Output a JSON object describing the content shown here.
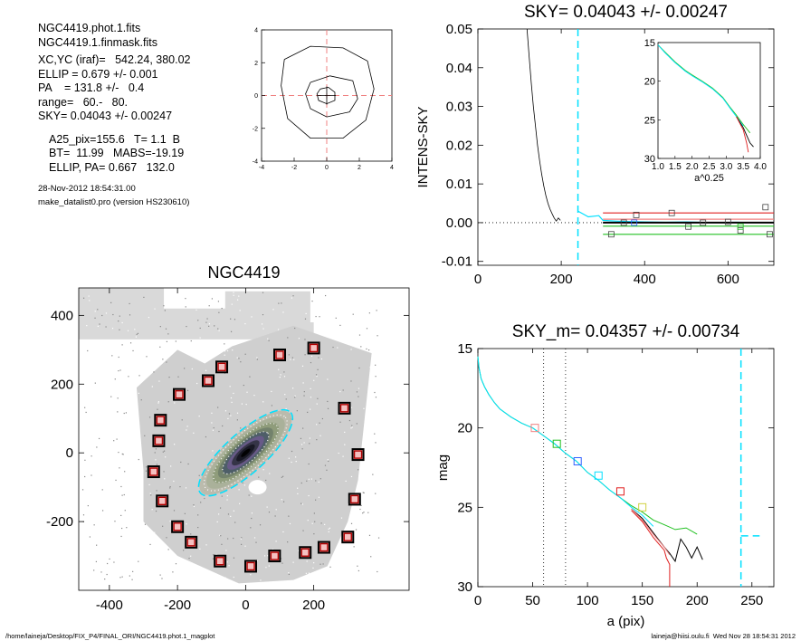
{
  "info": {
    "block1": [
      "NGC4419.phot.1.fits",
      "NGC4419.1.finmask.fits"
    ],
    "block2": [
      "XC,YC (iraf)=   542.24, 380.02",
      "ELLIP = 0.679 +/- 0.001",
      "PA    = 131.8 +/-   0.4",
      "range=   60.-   80.",
      "SKY= 0.04043 +/- 0.00247"
    ],
    "block3": [
      "A25_pix=155.6   T= 1.1  B",
      "BT=  11.99   MABS=-19.19",
      "ELLIP, PA= 0.667   132.0"
    ],
    "block4": [
      "28-Nov-2012 18:54:31.00",
      "make_datalist0.pro (version HS230610)"
    ]
  },
  "footer": {
    "left": "/home/laineja/Desktop/FIX_P4/FINAL_ORI/NGC4419.phot.1_magplot",
    "right": "laineja@hiisi.oulu.fi  Wed Nov 28 18:54:31 2012"
  },
  "colors": {
    "cyan": "#00e0ff",
    "red": "#e02020",
    "green": "#22c022",
    "salmon": "#f08080",
    "blue": "#3060ff",
    "box": "#b00000"
  },
  "chart_data": [
    {
      "id": "isophote_panel",
      "type": "line",
      "title": "",
      "xlim": [
        -4,
        4
      ],
      "ylim": [
        -4,
        4
      ],
      "xticks": [
        "-4",
        "-2",
        "0",
        "2",
        "4"
      ],
      "yticks": [
        "-4",
        "-2",
        "0",
        "2",
        "4"
      ],
      "contours": [
        [
          [
            -2.6,
            2.2
          ],
          [
            -1.0,
            3.0
          ],
          [
            1.0,
            2.9
          ],
          [
            2.5,
            2.1
          ],
          [
            2.9,
            0.4
          ],
          [
            2.4,
            -1.5
          ],
          [
            1.0,
            -2.6
          ],
          [
            -1.0,
            -2.6
          ],
          [
            -2.4,
            -1.4
          ],
          [
            -2.8,
            0.6
          ],
          [
            -2.6,
            2.2
          ]
        ],
        [
          [
            -1.0,
            0.8
          ],
          [
            0.2,
            1.2
          ],
          [
            1.6,
            0.9
          ],
          [
            1.9,
            -0.2
          ],
          [
            1.4,
            -1.0
          ],
          [
            0.0,
            -1.3
          ],
          [
            -1.0,
            -0.8
          ],
          [
            -1.3,
            0.1
          ],
          [
            -1.0,
            0.8
          ]
        ],
        [
          [
            -0.4,
            0.4
          ],
          [
            0.1,
            0.5
          ],
          [
            0.5,
            0.2
          ],
          [
            0.5,
            -0.3
          ],
          [
            0.0,
            -0.5
          ],
          [
            -0.5,
            -0.3
          ],
          [
            -0.6,
            0.1
          ],
          [
            -0.4,
            0.4
          ]
        ]
      ],
      "crosshair": [
        0,
        0
      ]
    },
    {
      "id": "sky_panel",
      "type": "line",
      "title": "SKY= 0.04043 +/- 0.00247",
      "xlabel": "",
      "ylabel": "INTENS-SKY",
      "xlim": [
        0,
        710
      ],
      "ylim": [
        -0.011,
        0.05
      ],
      "xticks": [
        0,
        200,
        400,
        600
      ],
      "yticks": [
        "0.05",
        "0.04",
        "0.03",
        "0.02",
        "0.01",
        "0.00",
        "-0.01"
      ],
      "ytick_values": [
        0.05,
        0.04,
        0.03,
        0.02,
        0.01,
        0.0,
        -0.01
      ],
      "series": [
        {
          "color": "#000000",
          "x": [
            118,
            123,
            128,
            133,
            138,
            143,
            148,
            153,
            158,
            163,
            168,
            173,
            178,
            183,
            188,
            193,
            198
          ],
          "y": [
            0.05,
            0.043,
            0.036,
            0.03,
            0.025,
            0.02,
            0.016,
            0.0125,
            0.0095,
            0.007,
            0.005,
            0.0035,
            0.0023,
            0.0012,
            0.0004,
            0.0012,
            0.0006
          ]
        },
        {
          "color": "#00e0ff",
          "x": [
            240,
            265,
            290,
            300,
            330,
            360,
            400,
            450,
            500,
            560,
            620,
            680,
            710
          ],
          "y": [
            0.003,
            0.0015,
            0.0018,
            0.0006,
            0.0004,
            0.0003,
            0.0002,
            0.0001,
            0.0002,
            0.0,
            0.0001,
            0.0,
            0.0
          ]
        },
        {
          "color": "#e02020",
          "x": [
            300,
            710
          ],
          "y": [
            0.0025,
            0.0025
          ]
        },
        {
          "color": "#f08080",
          "x": [
            300,
            710
          ],
          "y": [
            0.0009,
            0.0009
          ]
        },
        {
          "color": "#22c022",
          "x": [
            300,
            710
          ],
          "y": [
            -0.0009,
            -0.0009
          ]
        },
        {
          "color": "#22c022",
          "x": [
            300,
            710
          ],
          "y": [
            -0.003,
            -0.003
          ]
        }
      ],
      "sky_level": 0.0,
      "sky_box_points": {
        "x": [
          320,
          350,
          380,
          465,
          505,
          540,
          600,
          630,
          690,
          700,
          375,
          630
        ],
        "y": [
          -0.003,
          0.0,
          0.002,
          0.0025,
          -0.001,
          0.0,
          0.0002,
          -0.002,
          0.004,
          -0.003,
          0.0,
          -0.001
        ]
      },
      "vline": 240,
      "inset": {
        "xlabel": "a^0.25",
        "xlim": [
          1.0,
          4.0
        ],
        "ylim": [
          15,
          30
        ],
        "xticks": [
          "1.0",
          "1.5",
          "2.0",
          "2.5",
          "3.0",
          "3.5",
          "4.0"
        ],
        "yticks": [
          "15",
          "20",
          "25",
          "30"
        ],
        "series": [
          {
            "color": "#22c022",
            "x": [
              1.0,
              1.2,
              1.5,
              1.8,
              2.0,
              2.3,
              2.6,
              2.9,
              3.1,
              3.3,
              3.5,
              3.7
            ],
            "y": [
              15.3,
              16.2,
              17.5,
              18.6,
              19.2,
              20.0,
              20.9,
              22.1,
              23.3,
              24.4,
              25.6,
              26.7
            ]
          },
          {
            "color": "#00e0ff",
            "x": [
              1.0,
              1.2,
              1.5,
              1.8,
              2.0,
              2.3,
              2.6,
              2.9,
              3.1,
              3.3,
              3.5
            ],
            "y": [
              15.3,
              16.3,
              17.6,
              18.7,
              19.3,
              20.1,
              21.0,
              22.2,
              23.4,
              24.6,
              25.8
            ]
          },
          {
            "color": "#000000",
            "x": [
              3.3,
              3.5,
              3.6,
              3.7,
              3.8
            ],
            "y": [
              24.6,
              26.0,
              27.0,
              28.0,
              28.5
            ]
          },
          {
            "color": "#e02020",
            "x": [
              3.3,
              3.5,
              3.6,
              3.65
            ],
            "y": [
              24.6,
              26.3,
              28.0,
              29.2
            ]
          }
        ]
      }
    },
    {
      "id": "galaxy_image",
      "type": "scatter",
      "title": "NGC4419",
      "xlim": [
        -490,
        480
      ],
      "ylim": [
        -400,
        480
      ],
      "xticks": [
        -400,
        -200,
        0,
        200
      ],
      "yticks": [
        400,
        200,
        0,
        -200
      ],
      "ellipse": {
        "cx": 0,
        "cy": 0,
        "a": 174,
        "b": 58,
        "angle_deg": 41.8
      },
      "sky_boxes": {
        "x": [
          -270,
          -250,
          -255,
          -195,
          -110,
          -70,
          100,
          200,
          290,
          330,
          320,
          300,
          230,
          175,
          85,
          15,
          -75,
          -160,
          -200,
          -245
        ],
        "y": [
          -55,
          95,
          35,
          170,
          210,
          250,
          285,
          305,
          130,
          -5,
          -135,
          -245,
          -275,
          -290,
          -300,
          -330,
          -315,
          -260,
          -215,
          -140
        ]
      }
    },
    {
      "id": "mag_panel",
      "type": "line",
      "title": "SKY_m=  0.04357 +/- 0.00734",
      "xlabel": "a (pix)",
      "ylabel": "mag",
      "xlim": [
        0,
        270
      ],
      "ylim": [
        30,
        15
      ],
      "xticks": [
        0,
        50,
        100,
        150,
        200,
        250
      ],
      "yticks": [
        15,
        20,
        25,
        30
      ],
      "series": [
        {
          "color": "#22c022",
          "x": [
            0,
            1,
            3,
            6,
            10,
            15,
            20,
            30,
            40,
            50,
            60,
            70,
            80,
            90,
            100,
            110,
            120,
            130,
            140,
            150,
            160,
            170,
            180,
            190,
            200
          ],
          "y": [
            15.5,
            16.2,
            16.9,
            17.4,
            17.9,
            18.4,
            18.8,
            19.3,
            19.7,
            20.0,
            20.5,
            21.0,
            21.6,
            22.1,
            22.8,
            23.3,
            23.9,
            24.4,
            24.9,
            25.3,
            25.8,
            26.1,
            26.4,
            26.3,
            26.7
          ]
        },
        {
          "color": "#00e0ff",
          "x": [
            0,
            1,
            3,
            6,
            10,
            15,
            20,
            30,
            40,
            50,
            60,
            70,
            80,
            90,
            100,
            110,
            120,
            130,
            140,
            150,
            160
          ],
          "y": [
            15.5,
            16.2,
            16.9,
            17.4,
            17.9,
            18.4,
            18.8,
            19.3,
            19.7,
            20.0,
            20.5,
            21.0,
            21.6,
            22.1,
            22.8,
            23.3,
            23.9,
            24.4,
            25.0,
            25.5,
            26.2
          ]
        },
        {
          "color": "#000000",
          "x": [
            140,
            150,
            160,
            170,
            175,
            180,
            185,
            190,
            195,
            200,
            205
          ],
          "y": [
            25.1,
            25.7,
            26.6,
            27.5,
            27.9,
            28.4,
            27.0,
            27.5,
            28.2,
            27.5,
            28.3
          ]
        },
        {
          "color": "#e02020",
          "x": [
            140,
            150,
            160,
            165,
            170,
            172,
            175,
            175
          ],
          "y": [
            25.2,
            25.9,
            26.9,
            27.3,
            27.7,
            28.2,
            28.6,
            30.0
          ]
        },
        {
          "color": "#f08080",
          "x": [
            140,
            150,
            160,
            170,
            175
          ],
          "y": [
            25.1,
            25.8,
            26.7,
            27.5,
            28.0
          ]
        }
      ],
      "markers": [
        {
          "color": "#f08080",
          "x": 52,
          "y": 20.0
        },
        {
          "color": "#22c022",
          "x": 72,
          "y": 21.0
        },
        {
          "color": "#3060ff",
          "x": 91,
          "y": 22.1
        },
        {
          "color": "#00e0ff",
          "x": 110,
          "y": 23.0
        },
        {
          "color": "#e02020",
          "x": 130,
          "y": 24.0
        },
        {
          "color": "#d0d040",
          "x": 150,
          "y": 25.0
        }
      ],
      "range_lines": [
        60,
        80
      ],
      "sky_line": {
        "x": 240,
        "mag": 26.8,
        "x_end": 257
      }
    }
  ]
}
